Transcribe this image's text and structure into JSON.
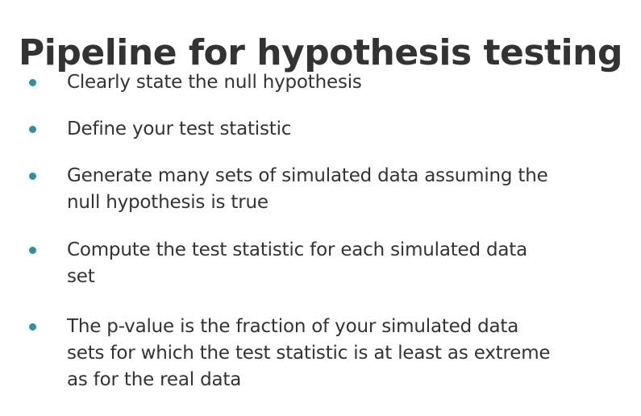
{
  "slide": {
    "title": "Pipeline for hypothesis testing",
    "bullets": [
      "Clearly state the null hypothesis",
      "Define your test statistic",
      "Generate many sets of simulated data assuming the null hypothesis is true",
      "Compute the test statistic for each simulated data set",
      "The p-value is the fraction of your simulated data sets for which the test statistic is at least as extreme as for the real data"
    ]
  },
  "colors": {
    "bullet": "#2e8fa6",
    "text": "#333333",
    "background": "#ffffff"
  }
}
